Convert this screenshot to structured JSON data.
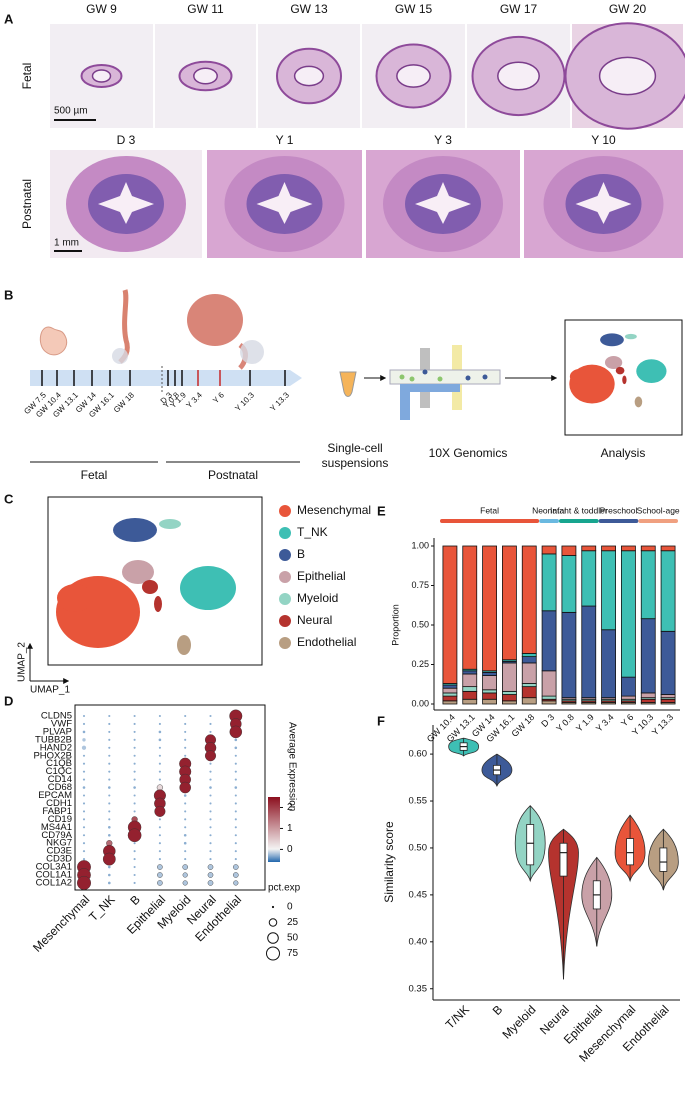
{
  "panel_a": {
    "label": "A",
    "fetal": {
      "row_label": "Fetal",
      "stages": [
        "GW 9",
        "GW 11",
        "GW 13",
        "GW 15",
        "GW 17",
        "GW 20"
      ],
      "scale_bar": "500 µm"
    },
    "postnatal": {
      "row_label": "Postnatal",
      "stages": [
        "D 3",
        "Y 1",
        "Y 3",
        "Y 10"
      ],
      "scale_bar": "1 mm"
    }
  },
  "panel_b": {
    "label": "B",
    "timepoints": [
      "GW 7.5",
      "GW 10.4",
      "GW 13.1",
      "GW 14",
      "GW 16.1",
      "GW 18",
      "D 3",
      "Y 0.8",
      "Y 1.9",
      "Y 3.4",
      "Y 6",
      "Y 10.3",
      "Y 13.3"
    ],
    "fetal": "Fetal",
    "postnatal": "Postnatal",
    "step_1": [
      "Single-cell",
      "suspensions"
    ],
    "step_2": "10X Genomics",
    "step_3": "Analysis"
  },
  "panel_c": {
    "label": "C",
    "x_axis": "UMAP_1",
    "y_axis": "UMAP_2",
    "legend": [
      {
        "name": "Mesenchymal",
        "color": "#e8553a"
      },
      {
        "name": "T_NK",
        "color": "#3ebfb4"
      },
      {
        "name": "B",
        "color": "#3d5a98"
      },
      {
        "name": "Epithelial",
        "color": "#c9a1a8"
      },
      {
        "name": "Myeloid",
        "color": "#93d4c4"
      },
      {
        "name": "Neural",
        "color": "#b5332e"
      },
      {
        "name": "Endothelial",
        "color": "#b89e82"
      }
    ]
  },
  "panel_d": {
    "label": "D",
    "genes": [
      "CLDN5",
      "VWF",
      "PLVAP",
      "TUBB2B",
      "HAND2",
      "PHOX2B",
      "C1QB",
      "C1QC",
      "CD14",
      "CD68",
      "EPCAM",
      "CDH1",
      "FABP1",
      "CD19",
      "MS4A1",
      "CD79A",
      "NKG7",
      "CD3E",
      "CD3D",
      "COL3A1",
      "COL1A1",
      "COL1A2"
    ],
    "groups": [
      "Mesenchymal",
      "T_NK",
      "B",
      "Epithelial",
      "Myeloid",
      "Neural",
      "Endothelial"
    ],
    "pct": [
      [
        2,
        2,
        2,
        2,
        2,
        2,
        70
      ],
      [
        2,
        2,
        2,
        2,
        2,
        2,
        55
      ],
      [
        3,
        2,
        2,
        3,
        2,
        2,
        65
      ],
      [
        5,
        2,
        2,
        3,
        2,
        50,
        3
      ],
      [
        8,
        2,
        2,
        2,
        2,
        55,
        3
      ],
      [
        2,
        2,
        2,
        2,
        2,
        50,
        2
      ],
      [
        2,
        2,
        2,
        2,
        60,
        2,
        2
      ],
      [
        2,
        2,
        2,
        2,
        60,
        2,
        2
      ],
      [
        2,
        2,
        2,
        2,
        55,
        2,
        2
      ],
      [
        3,
        3,
        3,
        15,
        55,
        3,
        3
      ],
      [
        2,
        2,
        2,
        60,
        3,
        2,
        2
      ],
      [
        2,
        2,
        2,
        55,
        2,
        2,
        2
      ],
      [
        2,
        2,
        2,
        50,
        2,
        2,
        2
      ],
      [
        2,
        2,
        15,
        2,
        2,
        2,
        2
      ],
      [
        2,
        3,
        75,
        2,
        2,
        2,
        2
      ],
      [
        2,
        3,
        78,
        2,
        3,
        2,
        2
      ],
      [
        2,
        15,
        2,
        2,
        3,
        2,
        2
      ],
      [
        2,
        65,
        2,
        2,
        2,
        2,
        2
      ],
      [
        2,
        68,
        2,
        2,
        2,
        2,
        2
      ],
      [
        80,
        3,
        2,
        12,
        12,
        12,
        12
      ],
      [
        78,
        3,
        2,
        12,
        10,
        12,
        12
      ],
      [
        82,
        3,
        2,
        12,
        10,
        12,
        10
      ]
    ],
    "expr": [
      [
        -0.3,
        -0.3,
        -0.3,
        -0.3,
        -0.3,
        -0.3,
        2.3
      ],
      [
        -0.3,
        -0.3,
        -0.3,
        -0.3,
        -0.3,
        -0.3,
        2.3
      ],
      [
        -0.3,
        -0.3,
        -0.3,
        -0.3,
        -0.3,
        -0.3,
        2.3
      ],
      [
        -0.2,
        -0.3,
        -0.3,
        -0.3,
        -0.3,
        2.3,
        -0.3
      ],
      [
        -0.2,
        -0.3,
        -0.3,
        -0.3,
        -0.3,
        2.3,
        -0.3
      ],
      [
        -0.3,
        -0.3,
        -0.3,
        -0.3,
        -0.3,
        2.3,
        -0.3
      ],
      [
        -0.3,
        -0.3,
        -0.3,
        -0.3,
        2.3,
        -0.3,
        -0.3
      ],
      [
        -0.3,
        -0.3,
        -0.3,
        -0.3,
        2.3,
        -0.3,
        -0.3
      ],
      [
        -0.3,
        -0.3,
        -0.3,
        -0.3,
        2.3,
        -0.3,
        -0.3
      ],
      [
        -0.3,
        -0.3,
        -0.3,
        0.3,
        2.3,
        -0.3,
        -0.3
      ],
      [
        -0.3,
        -0.3,
        -0.3,
        2.3,
        -0.3,
        -0.3,
        -0.3
      ],
      [
        -0.3,
        -0.3,
        -0.3,
        2.3,
        -0.3,
        -0.3,
        -0.3
      ],
      [
        -0.3,
        -0.3,
        -0.3,
        2.3,
        -0.3,
        -0.3,
        -0.3
      ],
      [
        -0.3,
        -0.3,
        1.8,
        -0.3,
        -0.3,
        -0.3,
        -0.3
      ],
      [
        -0.3,
        -0.3,
        2.3,
        -0.3,
        -0.3,
        -0.3,
        -0.3
      ],
      [
        -0.3,
        -0.3,
        2.3,
        -0.3,
        -0.3,
        -0.3,
        -0.3
      ],
      [
        -0.3,
        1.5,
        -0.3,
        -0.3,
        -0.3,
        -0.3,
        -0.3
      ],
      [
        -0.3,
        2.3,
        -0.3,
        -0.3,
        -0.3,
        -0.3,
        -0.3
      ],
      [
        -0.3,
        2.3,
        -0.3,
        -0.3,
        -0.3,
        -0.3,
        -0.3
      ],
      [
        2.3,
        -0.3,
        -0.3,
        -0.2,
        -0.2,
        -0.2,
        -0.2
      ],
      [
        2.3,
        -0.3,
        -0.3,
        -0.2,
        -0.2,
        -0.2,
        -0.2
      ],
      [
        2.3,
        -0.3,
        -0.3,
        -0.2,
        -0.2,
        -0.2,
        -0.2
      ]
    ],
    "color_title": "Average Expression",
    "colorlim": [
      -0.6,
      2.5
    ],
    "colorticks": [
      0,
      1,
      2
    ],
    "size_title": "pct.exp",
    "size_ticks": [
      0,
      25,
      50,
      75
    ]
  },
  "panel_e": {
    "label": "E",
    "type": "bar",
    "stacked": true,
    "y_label": "Proportion",
    "categories": [
      "GW 10.4",
      "GW 13.1",
      "GW 14",
      "GW 16.1",
      "GW 18",
      "D 3",
      "Y 0.8",
      "Y 1.9",
      "Y 3.4",
      "Y 6",
      "Y 10.3",
      "Y 13.3"
    ],
    "series": [
      {
        "name": "Endothelial",
        "color": "#b89e82",
        "values": [
          0.02,
          0.03,
          0.03,
          0.02,
          0.04,
          0.02,
          0.01,
          0.01,
          0.01,
          0.01,
          0.01,
          0.01
        ]
      },
      {
        "name": "Neural",
        "color": "#b5332e",
        "values": [
          0.03,
          0.05,
          0.04,
          0.04,
          0.07,
          0.01,
          0.01,
          0.01,
          0.01,
          0.01,
          0.02,
          0.02
        ]
      },
      {
        "name": "Myeloid",
        "color": "#93d4c4",
        "values": [
          0.02,
          0.03,
          0.02,
          0.02,
          0.02,
          0.02,
          0.01,
          0.01,
          0.01,
          0.01,
          0.01,
          0.01
        ]
      },
      {
        "name": "Epithelial",
        "color": "#c9a1a8",
        "values": [
          0.03,
          0.08,
          0.09,
          0.18,
          0.13,
          0.16,
          0.01,
          0.01,
          0.01,
          0.02,
          0.03,
          0.02
        ]
      },
      {
        "name": "B",
        "color": "#3d5a98",
        "values": [
          0.02,
          0.02,
          0.02,
          0.01,
          0.04,
          0.38,
          0.54,
          0.58,
          0.43,
          0.12,
          0.47,
          0.4
        ]
      },
      {
        "name": "T_NK",
        "color": "#3ebfb4",
        "values": [
          0.01,
          0.01,
          0.01,
          0.01,
          0.02,
          0.36,
          0.36,
          0.35,
          0.5,
          0.8,
          0.43,
          0.51
        ]
      },
      {
        "name": "Mesenchymal",
        "color": "#e8553a",
        "values": [
          0.87,
          0.78,
          0.79,
          0.72,
          0.68,
          0.05,
          0.06,
          0.03,
          0.03,
          0.03,
          0.03,
          0.03
        ]
      }
    ],
    "ylim": [
      0,
      1
    ],
    "yticks": [
      {
        "value": 0,
        "label": "0.00"
      },
      {
        "value": 0.25,
        "label": "0.25"
      },
      {
        "value": 0.5,
        "label": "0.50"
      },
      {
        "value": 0.75,
        "label": "0.75"
      },
      {
        "value": 1,
        "label": "1.00"
      }
    ],
    "groups": [
      {
        "name": "Fetal",
        "color": "#e8553a",
        "bars": 5
      },
      {
        "name": "Neonatal",
        "color": "#6ab9e0",
        "bars": 1
      },
      {
        "name": "Infant & toddler",
        "color": "#17a58f",
        "bars": 2
      },
      {
        "name": "Preschool",
        "color": "#3d5a98",
        "bars": 2
      },
      {
        "name": "School-age",
        "color": "#f0a080",
        "bars": 2
      }
    ]
  },
  "panel_f": {
    "label": "F",
    "type": "violin",
    "y_label": "Similarity score",
    "categories": [
      "T/NK",
      "B",
      "Myeloid",
      "Neural",
      "Epithelial",
      "Mesenchymal",
      "Endothelial"
    ],
    "colors": [
      "#3ebfb4",
      "#3d5a98",
      "#93d4c4",
      "#b5332e",
      "#c9a1a8",
      "#e8553a",
      "#b89e82"
    ],
    "min": [
      0.598,
      0.566,
      0.465,
      0.36,
      0.395,
      0.465,
      0.455
    ],
    "q1": [
      0.604,
      0.578,
      0.482,
      0.47,
      0.435,
      0.482,
      0.475
    ],
    "median": [
      0.608,
      0.583,
      0.505,
      0.495,
      0.45,
      0.495,
      0.485
    ],
    "q3": [
      0.612,
      0.588,
      0.525,
      0.505,
      0.465,
      0.51,
      0.5
    ],
    "max": [
      0.617,
      0.6,
      0.545,
      0.52,
      0.49,
      0.535,
      0.52
    ],
    "ylim": [
      0.338,
      0.631
    ],
    "yticks": [
      {
        "value": 0.35,
        "label": "0.35"
      },
      {
        "value": 0.4,
        "label": "0.40"
      },
      {
        "value": 0.45,
        "label": "0.45"
      },
      {
        "value": 0.5,
        "label": "0.50"
      },
      {
        "value": 0.55,
        "label": "0.55"
      },
      {
        "value": 0.6,
        "label": "0.60"
      }
    ]
  }
}
